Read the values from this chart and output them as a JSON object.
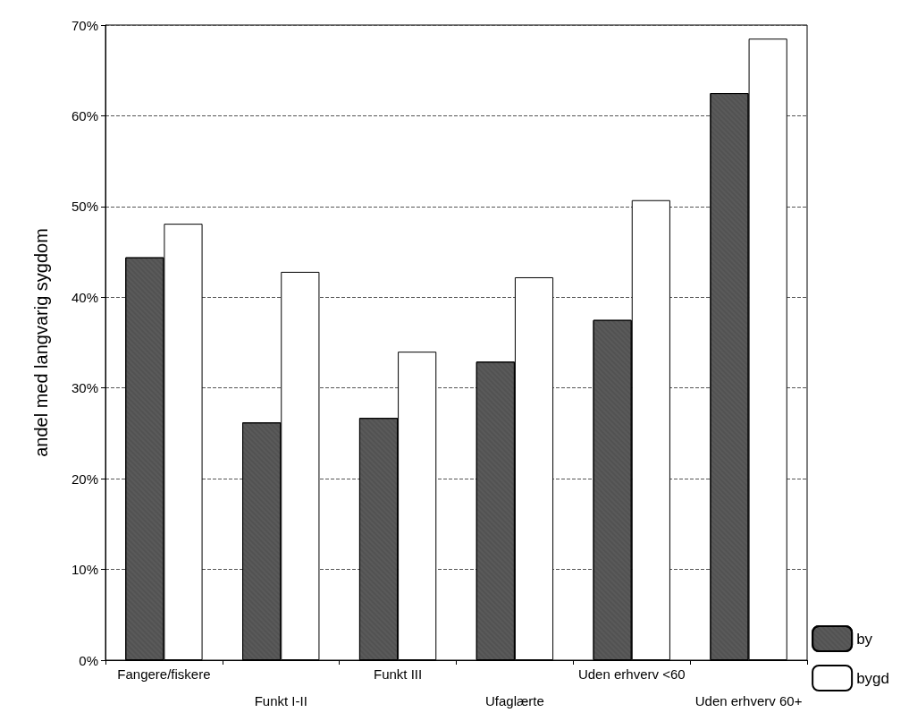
{
  "chart_data": {
    "type": "bar",
    "ylabel": "andel med langvarig sygdom",
    "categories": [
      "Fangere/fiskere",
      "Funkt I-II",
      "Funkt III",
      "Ufaglærte",
      "Uden erhverv <60",
      "Uden erhverv 60+"
    ],
    "series": [
      {
        "name": "by",
        "color": "#5a5a5a",
        "values": [
          44.4,
          26.2,
          26.7,
          32.9,
          37.5,
          62.5
        ]
      },
      {
        "name": "bygd",
        "color": "#ffffff",
        "values": [
          48.1,
          42.8,
          34.0,
          42.2,
          50.7,
          68.5
        ]
      }
    ],
    "ylim": [
      0,
      70
    ],
    "yticks": [
      {
        "value": 0,
        "label": "0%"
      },
      {
        "value": 10,
        "label": "10%"
      },
      {
        "value": 20,
        "label": "20%"
      },
      {
        "value": 30,
        "label": "30%"
      },
      {
        "value": 40,
        "label": "40%"
      },
      {
        "value": 50,
        "label": "50%"
      },
      {
        "value": 60,
        "label": "60%"
      },
      {
        "value": 70,
        "label": "70%"
      }
    ],
    "grid": "y",
    "legend": "bottom right"
  }
}
